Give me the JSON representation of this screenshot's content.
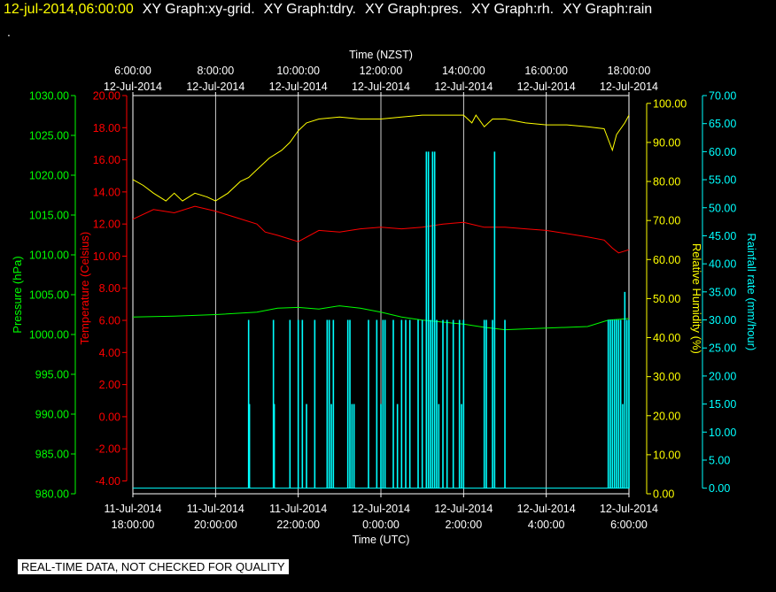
{
  "header": {
    "timestamp": "12-jul-2014,06:00:00",
    "graph_labels": [
      "XY Graph:xy-grid.",
      "XY Graph:tdry.",
      "XY Graph:pres.",
      "XY Graph:rh.",
      "XY Graph:rain"
    ],
    "marker": "."
  },
  "disclaimer": "REAL-TIME DATA, NOT CHECKED FOR QUALITY",
  "colors": {
    "background": "#000000",
    "grid": "#ffffff",
    "pressure": "#00ff00",
    "temperature": "#ff0000",
    "humidity": "#ffff00",
    "rainfall": "#00ffff"
  },
  "chart_data": {
    "type": "line",
    "grid": true,
    "x_top": {
      "label": "Time (NZST)",
      "ticks": [
        {
          "t": 0,
          "line1": "6:00:00",
          "line2": "12-Jul-2014"
        },
        {
          "t": 2,
          "line1": "8:00:00",
          "line2": "12-Jul-2014"
        },
        {
          "t": 4,
          "line1": "10:00:00",
          "line2": "12-Jul-2014"
        },
        {
          "t": 6,
          "line1": "12:00:00",
          "line2": "12-Jul-2014"
        },
        {
          "t": 8,
          "line1": "14:00:00",
          "line2": "12-Jul-2014"
        },
        {
          "t": 10,
          "line1": "16:00:00",
          "line2": "12-Jul-2014"
        },
        {
          "t": 12,
          "line1": "18:00:00",
          "line2": "12-Jul-2014"
        }
      ]
    },
    "x_bottom": {
      "label": "Time (UTC)",
      "ticks": [
        {
          "t": 0,
          "line1": "11-Jul-2014",
          "line2": "18:00:00"
        },
        {
          "t": 2,
          "line1": "11-Jul-2014",
          "line2": "20:00:00"
        },
        {
          "t": 4,
          "line1": "11-Jul-2014",
          "line2": "22:00:00"
        },
        {
          "t": 6,
          "line1": "12-Jul-2014",
          "line2": "0:00:00"
        },
        {
          "t": 8,
          "line1": "12-Jul-2014",
          "line2": "2:00:00"
        },
        {
          "t": 10,
          "line1": "12-Jul-2014",
          "line2": "4:00:00"
        },
        {
          "t": 12,
          "line1": "12-Jul-2014",
          "line2": "6:00:00"
        }
      ]
    },
    "x_range_hours": [
      0,
      12
    ],
    "axes": {
      "pressure": {
        "label": "Pressure (hPa)",
        "range": [
          980,
          1030
        ],
        "ticks": [
          "980.00",
          "985.00",
          "990.00",
          "995.00",
          "1000.00",
          "1005.00",
          "1010.00",
          "1015.00",
          "1020.00",
          "1025.00",
          "1030.00"
        ]
      },
      "temperature": {
        "label": "Temperature (Celsius)",
        "range": [
          -4.8,
          20
        ],
        "ticks": [
          "-4.00",
          "-2.00",
          "0.00",
          "2.00",
          "4.00",
          "6.00",
          "8.00",
          "10.00",
          "12.00",
          "14.00",
          "16.00",
          "18.00",
          "20.00"
        ]
      },
      "humidity": {
        "label": "Relative Humidity (%)",
        "range": [
          0,
          102
        ],
        "ticks": [
          "0.00",
          "10.00",
          "20.00",
          "30.00",
          "40.00",
          "50.00",
          "60.00",
          "70.00",
          "80.00",
          "90.00",
          "100.00"
        ]
      },
      "rainfall": {
        "label": "Rainfall rate (mm/hour)",
        "range": [
          -1,
          70
        ],
        "ticks": [
          "0.00",
          "5.00",
          "10.00",
          "15.00",
          "20.00",
          "25.00",
          "30.00",
          "35.00",
          "40.00",
          "45.00",
          "50.00",
          "55.00",
          "60.00",
          "65.00",
          "70.00"
        ]
      }
    },
    "series": [
      {
        "key": "humidity",
        "name": "Relative Humidity (%)",
        "points": [
          [
            0,
            80.5
          ],
          [
            0.25,
            79
          ],
          [
            0.5,
            77
          ],
          [
            0.8,
            75
          ],
          [
            1.0,
            77
          ],
          [
            1.2,
            75
          ],
          [
            1.5,
            77
          ],
          [
            1.8,
            76
          ],
          [
            2.0,
            75
          ],
          [
            2.3,
            77
          ],
          [
            2.6,
            80
          ],
          [
            2.8,
            81
          ],
          [
            3.0,
            83
          ],
          [
            3.3,
            86
          ],
          [
            3.6,
            88
          ],
          [
            3.8,
            90
          ],
          [
            4.0,
            93
          ],
          [
            4.2,
            95
          ],
          [
            4.5,
            96
          ],
          [
            5.0,
            96.5
          ],
          [
            5.5,
            96
          ],
          [
            6.0,
            96
          ],
          [
            6.5,
            96.5
          ],
          [
            7.0,
            97
          ],
          [
            7.5,
            97
          ],
          [
            8.0,
            97
          ],
          [
            8.2,
            95
          ],
          [
            8.3,
            97
          ],
          [
            8.5,
            94
          ],
          [
            8.7,
            96
          ],
          [
            9.0,
            96
          ],
          [
            9.5,
            95
          ],
          [
            10.0,
            94.5
          ],
          [
            10.5,
            94.5
          ],
          [
            11.0,
            94
          ],
          [
            11.4,
            93.5
          ],
          [
            11.6,
            88
          ],
          [
            11.7,
            92
          ],
          [
            11.9,
            95
          ],
          [
            12.0,
            97
          ]
        ]
      },
      {
        "key": "temperature",
        "name": "Temperature (Celsius)",
        "points": [
          [
            0,
            12.3
          ],
          [
            0.5,
            12.9
          ],
          [
            1.0,
            12.7
          ],
          [
            1.5,
            13.1
          ],
          [
            2.0,
            12.8
          ],
          [
            2.5,
            12.4
          ],
          [
            3.0,
            12.0
          ],
          [
            3.2,
            11.5
          ],
          [
            3.5,
            11.3
          ],
          [
            4.0,
            10.9
          ],
          [
            4.5,
            11.6
          ],
          [
            5.0,
            11.5
          ],
          [
            5.5,
            11.7
          ],
          [
            6.0,
            11.8
          ],
          [
            6.5,
            11.7
          ],
          [
            7.0,
            11.8
          ],
          [
            7.5,
            12.0
          ],
          [
            8.0,
            12.1
          ],
          [
            8.5,
            11.8
          ],
          [
            9.0,
            11.8
          ],
          [
            9.5,
            11.7
          ],
          [
            10.0,
            11.6
          ],
          [
            10.5,
            11.4
          ],
          [
            11.0,
            11.2
          ],
          [
            11.4,
            11.0
          ],
          [
            11.6,
            10.5
          ],
          [
            11.75,
            10.2
          ],
          [
            12.0,
            10.4
          ]
        ]
      },
      {
        "key": "pressure",
        "name": "Pressure (hPa)",
        "points": [
          [
            0,
            1002.2
          ],
          [
            1.0,
            1002.3
          ],
          [
            2.0,
            1002.5
          ],
          [
            3.0,
            1002.8
          ],
          [
            3.5,
            1003.3
          ],
          [
            4.0,
            1003.4
          ],
          [
            4.5,
            1003.2
          ],
          [
            5.0,
            1003.6
          ],
          [
            5.5,
            1003.3
          ],
          [
            6.0,
            1002.8
          ],
          [
            6.5,
            1002.2
          ],
          [
            7.0,
            1001.8
          ],
          [
            8.0,
            1001.3
          ],
          [
            8.5,
            1000.9
          ],
          [
            9.0,
            1000.6
          ],
          [
            10.0,
            1000.8
          ],
          [
            11.0,
            1001.0
          ],
          [
            11.5,
            1001.8
          ],
          [
            12.0,
            1002.0
          ]
        ]
      },
      {
        "key": "rainfall",
        "name": "Rainfall rate (mm/hour)",
        "bars": [
          [
            2.8,
            30
          ],
          [
            2.82,
            15
          ],
          [
            3.4,
            30
          ],
          [
            3.42,
            15
          ],
          [
            3.8,
            30
          ],
          [
            4.0,
            30
          ],
          [
            4.1,
            30
          ],
          [
            4.2,
            15
          ],
          [
            4.4,
            30
          ],
          [
            4.7,
            30
          ],
          [
            4.75,
            30
          ],
          [
            4.8,
            15
          ],
          [
            4.85,
            30
          ],
          [
            5.2,
            30
          ],
          [
            5.25,
            30
          ],
          [
            5.3,
            15
          ],
          [
            5.35,
            15
          ],
          [
            5.7,
            30
          ],
          [
            5.9,
            30
          ],
          [
            6.0,
            15
          ],
          [
            6.05,
            30
          ],
          [
            6.1,
            30
          ],
          [
            6.3,
            30
          ],
          [
            6.4,
            15
          ],
          [
            6.5,
            30
          ],
          [
            6.6,
            30
          ],
          [
            6.7,
            30
          ],
          [
            6.9,
            30
          ],
          [
            7.0,
            30
          ],
          [
            7.1,
            60
          ],
          [
            7.15,
            60
          ],
          [
            7.2,
            30
          ],
          [
            7.25,
            60
          ],
          [
            7.3,
            60
          ],
          [
            7.35,
            30
          ],
          [
            7.4,
            15
          ],
          [
            7.5,
            30
          ],
          [
            7.6,
            30
          ],
          [
            7.75,
            30
          ],
          [
            7.9,
            30
          ],
          [
            7.95,
            15
          ],
          [
            8.0,
            30
          ],
          [
            8.5,
            30
          ],
          [
            8.55,
            30
          ],
          [
            8.7,
            30
          ],
          [
            8.75,
            60
          ],
          [
            9.0,
            30
          ],
          [
            11.5,
            30
          ],
          [
            11.55,
            30
          ],
          [
            11.6,
            30
          ],
          [
            11.65,
            30
          ],
          [
            11.7,
            30
          ],
          [
            11.75,
            30
          ],
          [
            11.8,
            30
          ],
          [
            11.85,
            15
          ],
          [
            11.9,
            35
          ],
          [
            11.95,
            30
          ],
          [
            12.0,
            30
          ]
        ]
      }
    ]
  }
}
